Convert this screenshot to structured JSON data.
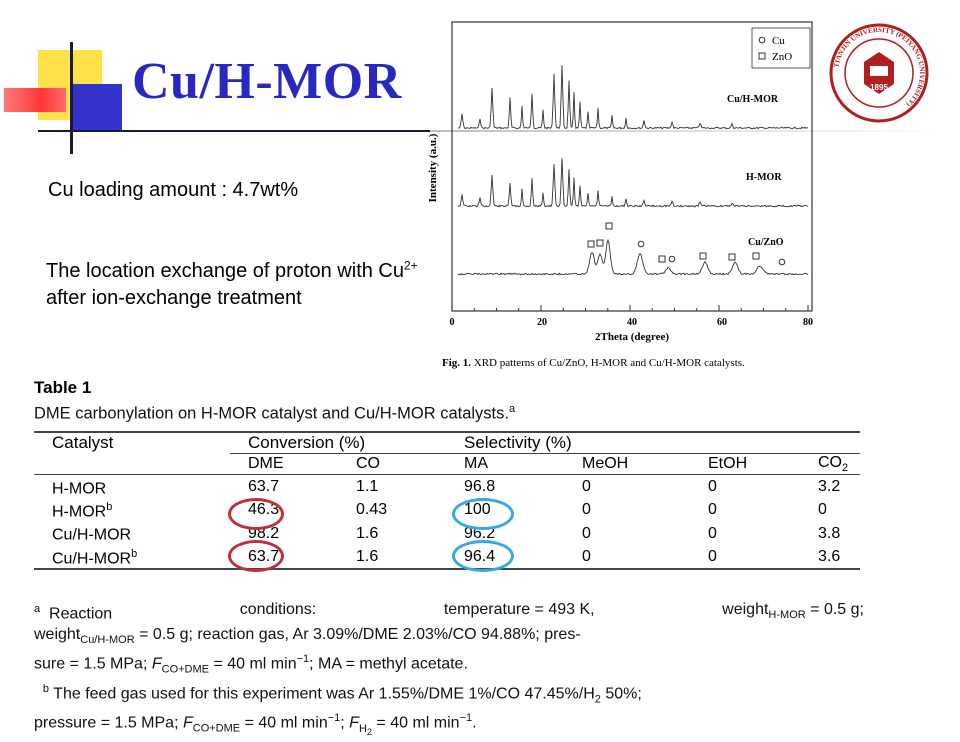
{
  "slide": {
    "title": "Cu/H-MOR",
    "loading_text": "Cu loading amount : 4.7wt%",
    "location_pre": "The location exchange of proton with Cu",
    "location_sup": "2+",
    "location_post": " after ion-exchange treatment"
  },
  "xrd": {
    "legend": [
      "Cu",
      "ZnO"
    ],
    "curves": [
      "Cu/H-MOR",
      "H-MOR",
      "Cu/ZnO"
    ],
    "ylabel": "Intensity (a.u.)",
    "xlabel": "2Theta (degree)",
    "xticks": [
      "0",
      "20",
      "40",
      "60",
      "80"
    ],
    "caption_label": "Fig. 1.",
    "caption_text": " XRD patterns of Cu/ZnO, H-MOR and Cu/H-MOR catalysts."
  },
  "seal": {
    "year": "1895",
    "ring_text": "TIANJIN UNIVERSITY (PEIYANG UNIVERSITY)"
  },
  "table": {
    "label": "Table 1",
    "title": "DME carbonylation on H-MOR catalyst and Cu/H-MOR catalysts.",
    "title_sup": "a",
    "col_catalyst": "Catalyst",
    "group_conversion": "Conversion (%)",
    "group_selectivity": "Selectivity (%)",
    "sub_dme": "DME",
    "sub_co": "CO",
    "sub_ma": "MA",
    "sub_meoh": "MeOH",
    "sub_etoh": "EtOH",
    "sub_co2_base": "CO",
    "sub_co2_sub": "2",
    "rows": [
      {
        "catalyst": "H-MOR",
        "sup": "",
        "dme": "63.7",
        "co": "1.1",
        "ma": "96.8",
        "meoh": "0",
        "etoh": "0",
        "co2": "3.2"
      },
      {
        "catalyst": "H-MOR",
        "sup": "b",
        "dme": "46.3",
        "co": "0.43",
        "ma": "100",
        "meoh": "0",
        "etoh": "0",
        "co2": "0"
      },
      {
        "catalyst": "Cu/H-MOR",
        "sup": "",
        "dme": "98.2",
        "co": "1.6",
        "ma": "96.2",
        "meoh": "0",
        "etoh": "0",
        "co2": "3.8"
      },
      {
        "catalyst": "Cu/H-MOR",
        "sup": "b",
        "dme": "63.7",
        "co": "1.6",
        "ma": "96.4",
        "meoh": "0",
        "etoh": "0",
        "co2": "3.6"
      }
    ]
  },
  "notes": {
    "a_mark": "a",
    "a_head": "Reaction",
    "a_conditions": "conditions:",
    "a_temp": "temperature = 493 K,",
    "a_weight": "weight",
    "a_weight_sub": "H-MOR",
    "a_weight_val": " = 0.5 g;",
    "a_line2_weight": "weight",
    "a_line2_sub": "Cu/H-MOR",
    "a_line2_rest": " = 0.5 g; reaction gas, Ar 3.09%/DME 2.03%/CO 94.88%; pres-",
    "a_line3_pre": "sure = 1.5 MPa; ",
    "a_line3_F": "F",
    "a_line3_sub": "CO+DME",
    "a_line3_val": " = 40 ml min",
    "a_line3_exp": "−1",
    "a_line3_post": "; MA = methyl acetate.",
    "b_mark": "b",
    "b_line1": " The feed gas used for this experiment was Ar 1.55%/DME 1%/CO 47.45%/H",
    "b_line1_sub": "2",
    "b_line1_end": " 50%;",
    "b_line2_pre": "pressure = 1.5 MPa; ",
    "b_line2_F": "F",
    "b_line2_sub": "CO+DME",
    "b_line2_val": " = 40 ml min",
    "b_line2_exp": "−1",
    "b_line2_mid": "; ",
    "b_line2_F2": "F",
    "b_line2_sub2": "H",
    "b_line2_sub2b": "2",
    "b_line2_val2": " = 40 ml min",
    "b_line2_exp2": "−1",
    "b_line2_end": "."
  },
  "colors": {
    "title": "#2828c0",
    "circle_red": "#c0303a",
    "circle_blue": "#34a9e6"
  }
}
